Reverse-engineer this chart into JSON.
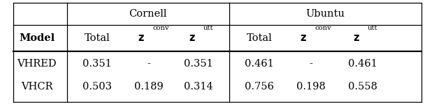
{
  "cornell_header": "Cornell",
  "ubuntu_header": "Ubuntu",
  "rows": [
    [
      "VHRED",
      "0.351",
      "-",
      "0.351",
      "0.461",
      "-",
      "0.461"
    ],
    [
      "VHCR",
      "0.503",
      "0.189",
      "0.314",
      "0.756",
      "0.198",
      "0.558"
    ]
  ],
  "background_color": "#ffffff",
  "text_color": "#000000",
  "font_size": 10.5
}
